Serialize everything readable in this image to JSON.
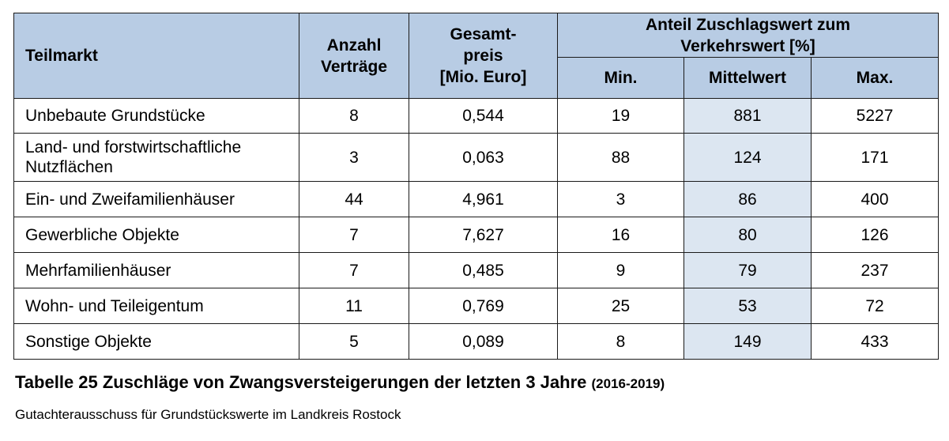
{
  "table": {
    "headers": {
      "teilmarkt": "Teilmarkt",
      "anzahl_line1": "Anzahl",
      "anzahl_line2": "Verträge",
      "gesamt_line1": "Gesamt-",
      "gesamt_line2": "preis",
      "gesamt_line3": "[Mio. Euro]",
      "anteil_line1": "Anteil Zuschlagswert zum",
      "anteil_line2": "Verkehrswert [%]",
      "min": "Min.",
      "mittelwert": "Mittelwert",
      "max": "Max."
    },
    "rows": [
      {
        "teilmarkt": "Unbebaute Grundstücke",
        "anzahl": "8",
        "gesamtpreis": "0,544",
        "min": "19",
        "mittelwert": "881",
        "max": "5227"
      },
      {
        "teilmarkt": "Land- und forstwirtschaftliche Nutzflächen",
        "anzahl": "3",
        "gesamtpreis": "0,063",
        "min": "88",
        "mittelwert": "124",
        "max": "171"
      },
      {
        "teilmarkt": "Ein- und Zweifamilienhäuser",
        "anzahl": "44",
        "gesamtpreis": "4,961",
        "min": "3",
        "mittelwert": "86",
        "max": "400"
      },
      {
        "teilmarkt": "Gewerbliche Objekte",
        "anzahl": "7",
        "gesamtpreis": "7,627",
        "min": "16",
        "mittelwert": "80",
        "max": "126"
      },
      {
        "teilmarkt": "Mehrfamilienhäuser",
        "anzahl": "7",
        "gesamtpreis": "0,485",
        "min": "9",
        "mittelwert": "79",
        "max": "237"
      },
      {
        "teilmarkt": "Wohn- und Teileigentum",
        "anzahl": "11",
        "gesamtpreis": "0,769",
        "min": "25",
        "mittelwert": "53",
        "max": "72"
      },
      {
        "teilmarkt": "Sonstige Objekte",
        "anzahl": "5",
        "gesamtpreis": "0,089",
        "min": "8",
        "mittelwert": "149",
        "max": "433"
      }
    ]
  },
  "caption": {
    "title": "Tabelle 25  Zuschläge von Zwangsversteigerungen der letzten 3 Jahre",
    "years": "(2016-2019)"
  },
  "source": "Gutachterausschuss für Grundstückswerte im Landkreis Rostock",
  "colors": {
    "header_bg": "#b8cce4",
    "mittelwert_bg": "#dce6f1"
  }
}
